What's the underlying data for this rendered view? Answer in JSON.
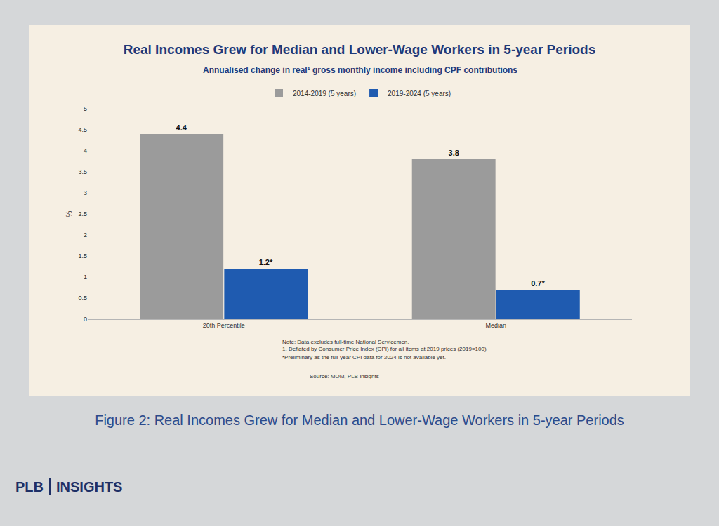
{
  "chart_data": {
    "type": "bar",
    "title": "Real Incomes Grew for Median and Lower-Wage Workers in 5-year Periods",
    "subtitle": "Annualised change in real¹ gross monthly income including CPF contributions",
    "y_label": "%",
    "categories": [
      "20th Percentile",
      "Median"
    ],
    "series": [
      {
        "name": "2014-2019 (5 years)",
        "color": "#9b9b9b",
        "values": [
          4.4,
          3.8
        ]
      },
      {
        "name": "2019-2024 (5 years)",
        "color": "#1f5bb0",
        "values": [
          1.2,
          0.7
        ],
        "value_labels": [
          "1.2*",
          "0.7*"
        ]
      }
    ],
    "ylim": [
      0,
      5
    ],
    "yticks": [
      0,
      0.5,
      1,
      1.5,
      2,
      2.5,
      3,
      3.5,
      4,
      4.5,
      5
    ],
    "data_labels": true,
    "legend": "top",
    "grid": false,
    "notes": [
      "Note: Data excludes full-time National Servicemen.",
      "1. Deflated by Consumer Price Index (CPI) for all items at 2019 prices (2019=100)",
      "*Preliminary as the full-year CPI data for 2024 is not available yet."
    ],
    "source": "Source: MOM, PLB Insights"
  },
  "caption": "Figure 2: Real Incomes Grew for Median and Lower-Wage Workers in 5-year Periods",
  "brand": [
    "PLB",
    "INSIGHTS"
  ]
}
